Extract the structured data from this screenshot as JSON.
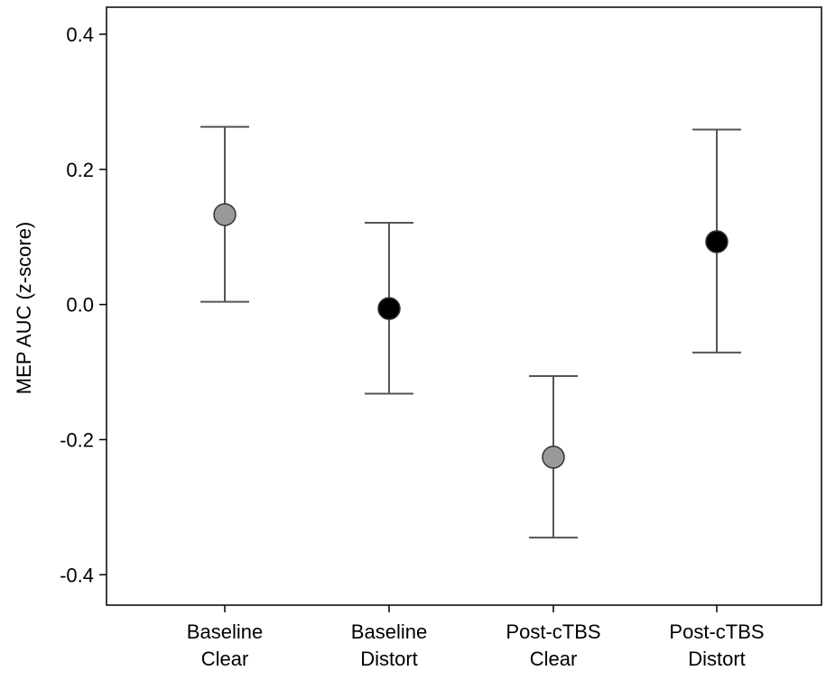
{
  "chart_data": {
    "type": "scatter",
    "subtype": "error-bar",
    "title": "",
    "xlabel": "",
    "ylabel": "MEP AUC (z-score)",
    "categories": [
      {
        "line1": "Baseline",
        "line2": "Clear"
      },
      {
        "line1": "Baseline",
        "line2": "Distort"
      },
      {
        "line1": "Post-cTBS",
        "line2": "Clear"
      },
      {
        "line1": "Post-cTBS",
        "line2": "Distort"
      }
    ],
    "points": [
      {
        "mean": 0.133,
        "lower": 0.004,
        "upper": 0.263,
        "color": "#999999"
      },
      {
        "mean": -0.006,
        "lower": -0.132,
        "upper": 0.121,
        "color": "#000000"
      },
      {
        "mean": -0.226,
        "lower": -0.345,
        "upper": -0.106,
        "color": "#999999"
      },
      {
        "mean": 0.093,
        "lower": -0.071,
        "upper": 0.259,
        "color": "#000000"
      }
    ],
    "yticks": [
      0.4,
      0.2,
      0.0,
      -0.2,
      -0.4
    ],
    "ytick_labels": [
      "0.4",
      "0.2",
      "0.0",
      "-0.2",
      "-0.4"
    ],
    "ylim": [
      -0.445,
      0.44
    ],
    "grid": false,
    "legend": "none",
    "colors": {
      "clear_marker": "#999999",
      "distort_marker": "#000000",
      "error_bar": "#555555",
      "axis": "#000000"
    }
  }
}
